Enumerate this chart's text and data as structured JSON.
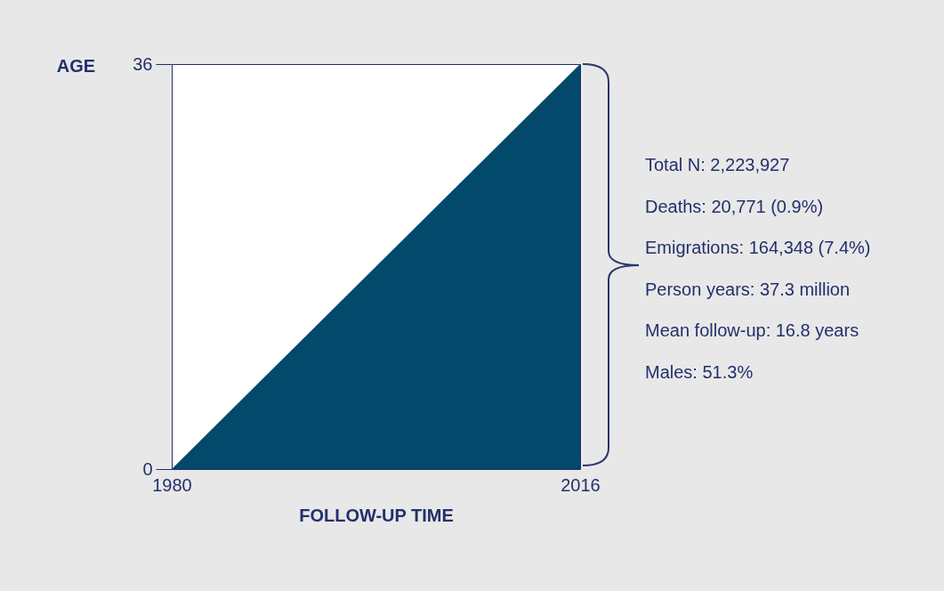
{
  "chart_data": {
    "type": "area",
    "xlabel": "FOLLOW-UP TIME",
    "ylabel": "AGE",
    "x": [
      1980,
      2016
    ],
    "values": [
      0,
      36
    ],
    "color": "#03496b",
    "xlim": [
      1980,
      2016
    ],
    "ylim": [
      0,
      36
    ],
    "xticks": [
      1980,
      2016
    ],
    "yticks": [
      0,
      36
    ],
    "annotations": [
      "Total N: 2,223,927",
      "Deaths: 20,771 (0.9%)",
      "Emigrations: 164,348 (7.4%)",
      "Person years: 37.3 million",
      "Mean follow-up: 16.8 years",
      "Males: 51.3%"
    ]
  }
}
